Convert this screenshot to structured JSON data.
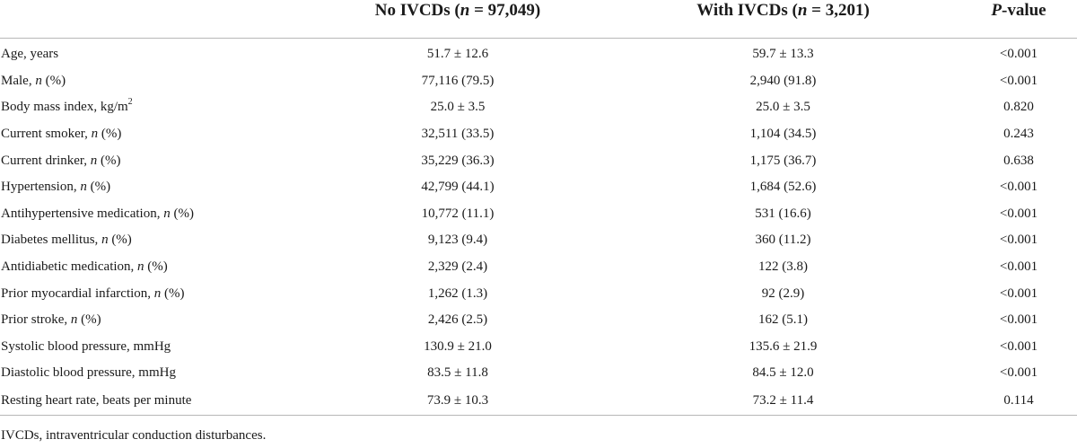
{
  "header": {
    "col1": "",
    "col2_prefix": "No IVCDs (",
    "col2_n": "n",
    "col2_suffix": " = 97,049)",
    "col3_prefix": "With IVCDs (",
    "col3_n": "n",
    "col3_suffix": " = 3,201)",
    "col4_p": "P",
    "col4_suffix": "-value"
  },
  "rows": [
    {
      "label_pre": "Age, years",
      "label_it": "",
      "label_post": "",
      "sup": "",
      "no": "51.7 ± 12.6",
      "with": "59.7 ± 13.3",
      "p": "<0.001"
    },
    {
      "label_pre": "Male, ",
      "label_it": "n",
      "label_post": " (%)",
      "sup": "",
      "no": "77,116 (79.5)",
      "with": "2,940 (91.8)",
      "p": "<0.001"
    },
    {
      "label_pre": "Body mass index, kg/m",
      "label_it": "",
      "label_post": "",
      "sup": "2",
      "no": "25.0 ± 3.5",
      "with": "25.0 ± 3.5",
      "p": "0.820"
    },
    {
      "label_pre": "Current smoker, ",
      "label_it": "n",
      "label_post": " (%)",
      "sup": "",
      "no": "32,511 (33.5)",
      "with": "1,104 (34.5)",
      "p": "0.243"
    },
    {
      "label_pre": "Current drinker, ",
      "label_it": "n",
      "label_post": " (%)",
      "sup": "",
      "no": "35,229 (36.3)",
      "with": "1,175 (36.7)",
      "p": "0.638"
    },
    {
      "label_pre": "Hypertension, ",
      "label_it": "n",
      "label_post": " (%)",
      "sup": "",
      "no": "42,799 (44.1)",
      "with": "1,684 (52.6)",
      "p": "<0.001"
    },
    {
      "label_pre": "Antihypertensive medication, ",
      "label_it": "n",
      "label_post": " (%)",
      "sup": "",
      "no": "10,772 (11.1)",
      "with": "531 (16.6)",
      "p": "<0.001"
    },
    {
      "label_pre": "Diabetes mellitus, ",
      "label_it": "n",
      "label_post": " (%)",
      "sup": "",
      "no": "9,123 (9.4)",
      "with": "360 (11.2)",
      "p": "<0.001"
    },
    {
      "label_pre": "Antidiabetic medication, ",
      "label_it": "n",
      "label_post": " (%)",
      "sup": "",
      "no": "2,329 (2.4)",
      "with": "122 (3.8)",
      "p": "<0.001"
    },
    {
      "label_pre": "Prior myocardial infarction, ",
      "label_it": "n",
      "label_post": " (%)",
      "sup": "",
      "no": "1,262 (1.3)",
      "with": "92 (2.9)",
      "p": "<0.001"
    },
    {
      "label_pre": "Prior stroke, ",
      "label_it": "n",
      "label_post": " (%)",
      "sup": "",
      "no": "2,426 (2.5)",
      "with": "162 (5.1)",
      "p": "<0.001"
    },
    {
      "label_pre": "Systolic blood pressure, mmHg",
      "label_it": "",
      "label_post": "",
      "sup": "",
      "no": "130.9 ± 21.0",
      "with": "135.6 ± 21.9",
      "p": "<0.001"
    },
    {
      "label_pre": "Diastolic blood pressure, mmHg",
      "label_it": "",
      "label_post": "",
      "sup": "",
      "no": "83.5 ± 11.8",
      "with": "84.5 ± 12.0",
      "p": "<0.001"
    },
    {
      "label_pre": "Resting heart rate, beats per minute",
      "label_it": "",
      "label_post": "",
      "sup": "",
      "no": "73.9 ± 10.3",
      "with": "73.2 ± 11.4",
      "p": "0.114"
    }
  ],
  "footnote": "IVCDs, intraventricular conduction disturbances."
}
